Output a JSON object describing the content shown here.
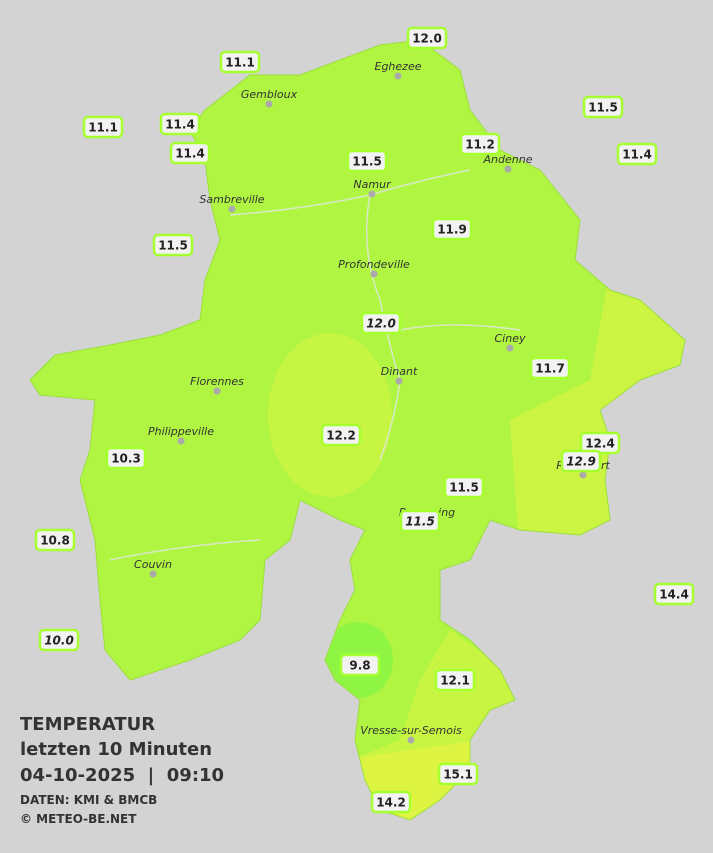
{
  "legend": {
    "title": "TEMPERATUR",
    "period": "letzten 10 Minuten",
    "datetime": "04-10-2025  |  09:10",
    "source": "DATEN: KMI & BMCB",
    "credit": "© METEO-BE.NET"
  },
  "cities": [
    "Eghezee",
    "Gembloux",
    "Andenne",
    "Namur",
    "Sambreville",
    "Profondeville",
    "Ciney",
    "Dinant",
    "Florennes",
    "Philippeville",
    "Rochefort",
    "Beauraing",
    "Couvin",
    "Vresse-sur-Semois"
  ],
  "stations": [
    "11.1",
    "12.0",
    "11.5",
    "11.1",
    "11.4",
    "11.2",
    "11.4",
    "11.5",
    "11.4",
    "11.5",
    "11.9",
    "11.7",
    "12.2",
    "12.4",
    "10.3",
    "11.5",
    "10.8",
    "14.4",
    "9.8",
    "12.1",
    "15.1",
    "14.2"
  ],
  "stations_secondary": [
    "12.0",
    "12.9",
    "11.5",
    "10.0"
  ]
}
